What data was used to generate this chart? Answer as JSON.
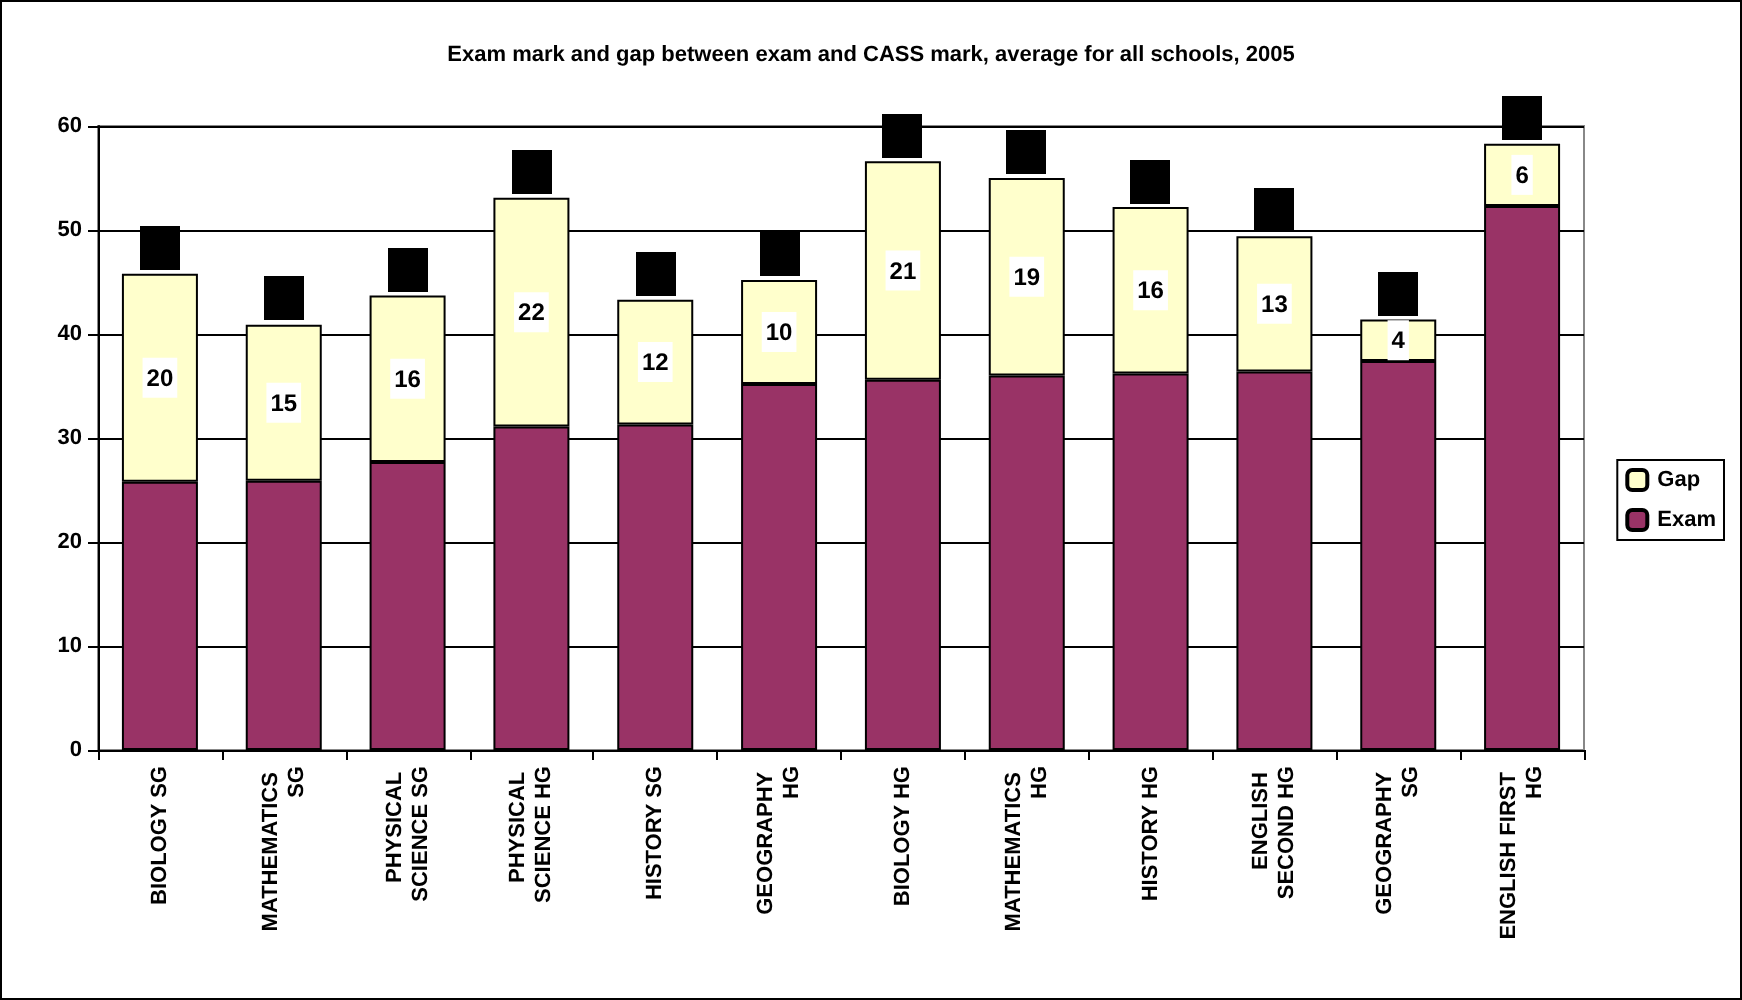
{
  "chart_data": {
    "type": "bar",
    "title": "Exam mark and gap between exam and CASS mark, average for all schools, 2005",
    "categories": [
      "BIOLOGY SG",
      "MATHEMATICS SG",
      "PHYSICAL SCIENCE SG",
      "PHYSICAL SCIENCE HG",
      "HISTORY SG",
      "GEOGRAPHY HG",
      "BIOLOGY HG",
      "MATHEMATICS HG",
      "HISTORY HG",
      "ENGLISH SECOND HG",
      "GEOGRAPHY SG",
      "ENGLISH FIRST HG"
    ],
    "stacked": true,
    "series": [
      {
        "name": "Exam",
        "color": "#993366",
        "values": [
          25.8,
          25.9,
          27.7,
          31.1,
          31.3,
          35.2,
          35.6,
          36.0,
          36.2,
          36.4,
          37.4,
          52.3
        ]
      },
      {
        "name": "Gap",
        "color": "#ffffcc",
        "values": [
          20,
          15,
          16,
          22,
          12,
          10,
          21,
          19,
          16,
          13,
          4,
          6
        ],
        "value_labels": [
          "20",
          "15",
          "16",
          "22",
          "12",
          "10",
          "21",
          "19",
          "16",
          "13",
          "4",
          "6"
        ]
      }
    ],
    "ylim": [
      0,
      60
    ],
    "yticks": [
      0,
      10,
      20,
      30,
      40,
      50,
      60
    ],
    "grid": "y",
    "legend": "right"
  }
}
